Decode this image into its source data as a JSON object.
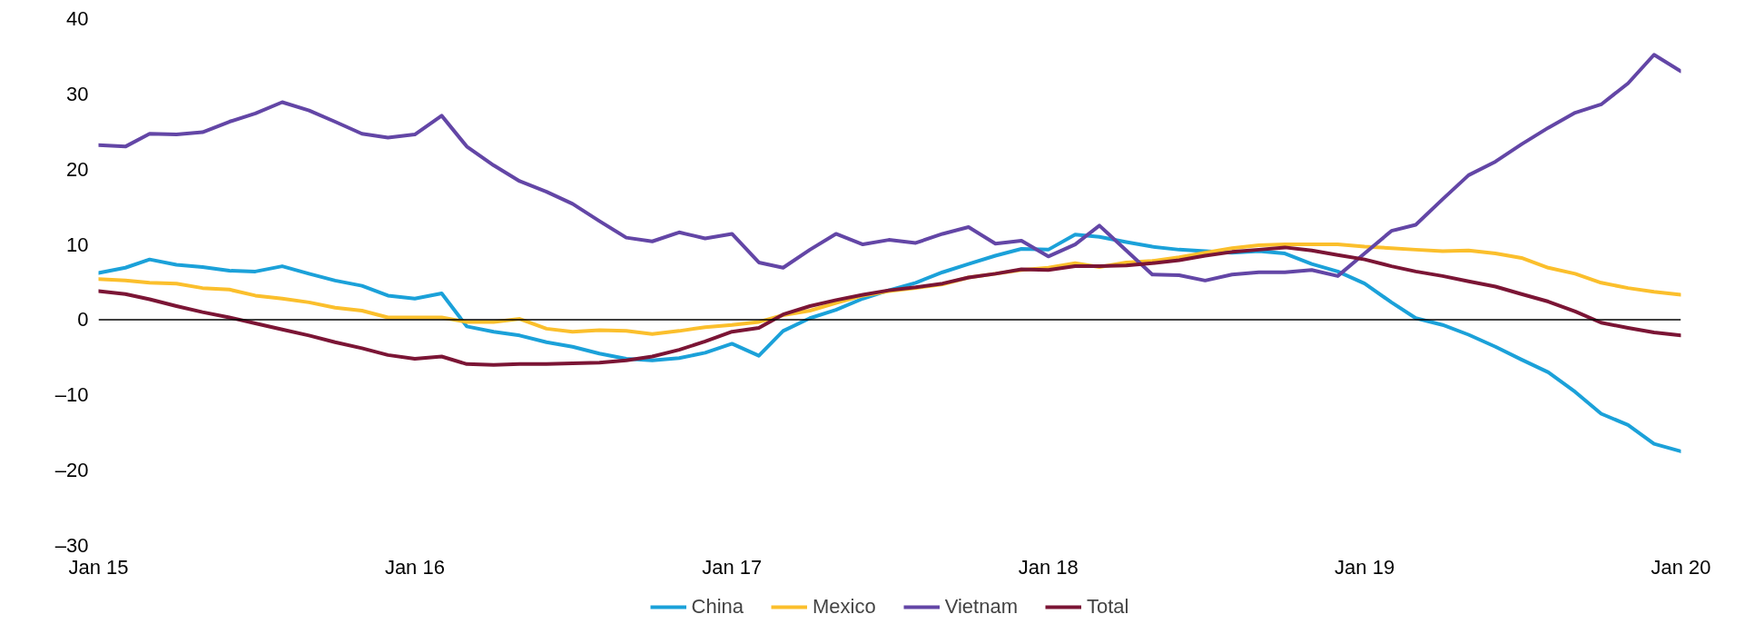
{
  "chart_data": {
    "type": "line",
    "x": [
      "2015-01",
      "2015-02",
      "2015-03",
      "2015-04",
      "2015-05",
      "2015-06",
      "2015-07",
      "2015-08",
      "2015-09",
      "2015-10",
      "2015-11",
      "2015-12",
      "2016-01",
      "2016-02",
      "2016-03",
      "2016-04",
      "2016-05",
      "2016-06",
      "2016-07",
      "2016-08",
      "2016-09",
      "2016-10",
      "2016-11",
      "2016-12",
      "2017-01",
      "2017-02",
      "2017-03",
      "2017-04",
      "2017-05",
      "2017-06",
      "2017-07",
      "2017-08",
      "2017-09",
      "2017-10",
      "2017-11",
      "2017-12",
      "2018-01",
      "2018-02",
      "2018-03",
      "2018-04",
      "2018-05",
      "2018-06",
      "2018-07",
      "2018-08",
      "2018-09",
      "2018-10",
      "2018-11",
      "2018-12",
      "2019-01",
      "2019-02",
      "2019-03",
      "2019-04",
      "2019-05",
      "2019-06",
      "2019-07",
      "2019-08",
      "2019-09",
      "2019-10",
      "2019-11",
      "2019-12",
      "2020-01"
    ],
    "series": [
      {
        "name": "China",
        "color": "#1ba1d9",
        "values": [
          6.2,
          6.9,
          8.0,
          7.3,
          7.0,
          6.5,
          6.4,
          7.1,
          6.1,
          5.2,
          4.5,
          3.2,
          2.8,
          3.5,
          -0.9,
          -1.6,
          -2.1,
          -3.0,
          -3.6,
          -4.5,
          -5.2,
          -5.4,
          -5.1,
          -4.4,
          -3.2,
          -4.8,
          -1.5,
          0.2,
          1.3,
          2.8,
          3.9,
          4.9,
          6.3,
          7.4,
          8.5,
          9.4,
          9.3,
          11.3,
          11.0,
          10.3,
          9.7,
          9.3,
          9.1,
          8.9,
          9.1,
          8.8,
          7.4,
          6.4,
          4.8,
          2.3,
          0.2,
          -0.7,
          -2.0,
          -3.6,
          -5.3,
          -7.0,
          -9.6,
          -12.5,
          -14.0,
          -16.5,
          -17.5
        ]
      },
      {
        "name": "Mexico",
        "color": "#fbbf2c",
        "values": [
          5.4,
          5.2,
          4.9,
          4.8,
          4.2,
          4.0,
          3.2,
          2.8,
          2.3,
          1.6,
          1.2,
          0.3,
          0.3,
          0.3,
          -0.3,
          -0.3,
          0.1,
          -1.2,
          -1.6,
          -1.4,
          -1.5,
          -1.9,
          -1.5,
          -1.0,
          -0.7,
          -0.3,
          0.6,
          1.2,
          2.2,
          3.2,
          3.8,
          4.2,
          4.7,
          5.6,
          6.1,
          6.6,
          6.9,
          7.5,
          7.0,
          7.6,
          7.8,
          8.3,
          8.9,
          9.5,
          9.9,
          10.0,
          10.0,
          10.0,
          9.7,
          9.5,
          9.3,
          9.1,
          9.2,
          8.8,
          8.2,
          6.9,
          6.1,
          4.9,
          4.2,
          3.7,
          3.3
        ]
      },
      {
        "name": "Vietnam",
        "color": "#6346a6",
        "values": [
          23.2,
          23.0,
          24.7,
          24.6,
          24.9,
          26.3,
          27.4,
          28.9,
          27.8,
          26.3,
          24.7,
          24.2,
          24.6,
          27.1,
          23.0,
          20.5,
          18.4,
          17.0,
          15.4,
          13.1,
          10.9,
          10.4,
          11.6,
          10.8,
          11.4,
          7.6,
          6.9,
          9.3,
          11.4,
          10.0,
          10.6,
          10.2,
          11.4,
          12.3,
          10.1,
          10.5,
          8.4,
          10.0,
          12.5,
          9.2,
          6.0,
          5.9,
          5.2,
          6.0,
          6.3,
          6.3,
          6.6,
          5.8,
          8.8,
          11.8,
          12.6,
          16.0,
          19.2,
          21.0,
          23.3,
          25.5,
          27.5,
          28.6,
          31.4,
          35.2,
          33.0
        ]
      },
      {
        "name": "Total",
        "color": "#7b1535",
        "values": [
          3.8,
          3.4,
          2.7,
          1.8,
          1.0,
          0.3,
          -0.5,
          -1.3,
          -2.1,
          -3.0,
          -3.8,
          -4.7,
          -5.2,
          -4.9,
          -5.9,
          -6.0,
          -5.9,
          -5.9,
          -5.8,
          -5.7,
          -5.4,
          -4.9,
          -4.0,
          -2.9,
          -1.6,
          -1.1,
          0.7,
          1.8,
          2.6,
          3.3,
          3.9,
          4.3,
          4.8,
          5.6,
          6.1,
          6.7,
          6.6,
          7.1,
          7.1,
          7.2,
          7.5,
          7.9,
          8.5,
          9.0,
          9.3,
          9.6,
          9.2,
          8.6,
          8.0,
          7.1,
          6.4,
          5.8,
          5.1,
          4.4,
          3.4,
          2.4,
          1.1,
          -0.4,
          -1.1,
          -1.7,
          -2.1
        ]
      }
    ],
    "xlim": [
      "2015-01",
      "2020-01"
    ],
    "xticks": [
      {
        "value": "2015-01",
        "label": "Jan 15"
      },
      {
        "value": "2016-01",
        "label": "Jan 16"
      },
      {
        "value": "2017-01",
        "label": "Jan 17"
      },
      {
        "value": "2018-01",
        "label": "Jan 18"
      },
      {
        "value": "2019-01",
        "label": "Jan 19"
      },
      {
        "value": "2020-01",
        "label": "Jan 20"
      }
    ],
    "ylim": [
      -30,
      40
    ],
    "yticks": [
      {
        "value": -30,
        "label": "–30"
      },
      {
        "value": -20,
        "label": "–20"
      },
      {
        "value": -10,
        "label": "–10"
      },
      0,
      10,
      20,
      30,
      40
    ],
    "ref_lines": [
      {
        "axis": "y",
        "value": 0,
        "color": "#000000"
      }
    ],
    "grid": false,
    "legend": "bottom",
    "marker": "none",
    "line_style": "solid"
  }
}
